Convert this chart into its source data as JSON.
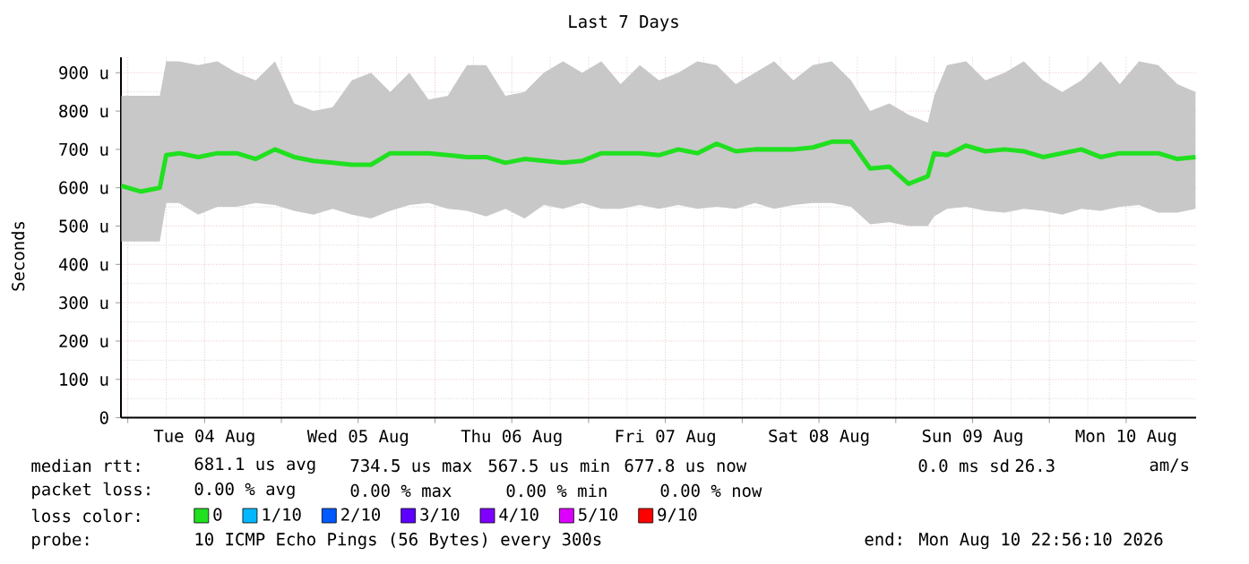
{
  "chart_data": {
    "type": "line",
    "title": "Last 7 Days",
    "ylabel": "Seconds",
    "legend_title": "loss color:",
    "legend": "bottom",
    "grid": true,
    "xlim": [
      "2026-08-03T22:56",
      "2026-08-10T22:56"
    ],
    "xticks": [
      {
        "value": "2026-08-04T00:00",
        "label": null
      },
      {
        "value": "2026-08-04T12:00",
        "label": "Tue 04 Aug"
      },
      {
        "value": "2026-08-05T00:00",
        "label": null
      },
      {
        "value": "2026-08-05T12:00",
        "label": "Wed 05 Aug"
      },
      {
        "value": "2026-08-06T00:00",
        "label": null
      },
      {
        "value": "2026-08-06T12:00",
        "label": "Thu 06 Aug"
      },
      {
        "value": "2026-08-07T00:00",
        "label": null
      },
      {
        "value": "2026-08-07T12:00",
        "label": "Fri 07 Aug"
      },
      {
        "value": "2026-08-08T00:00",
        "label": null
      },
      {
        "value": "2026-08-08T12:00",
        "label": "Sat 08 Aug"
      },
      {
        "value": "2026-08-09T00:00",
        "label": null
      },
      {
        "value": "2026-08-09T12:00",
        "label": "Sun 09 Aug"
      },
      {
        "value": "2026-08-10T00:00",
        "label": null
      },
      {
        "value": "2026-08-10T12:00",
        "label": "Mon 10 Aug"
      }
    ],
    "ylim": [
      0,
      940
    ],
    "yticks": [
      0,
      {
        "value": 100,
        "label": "100 u"
      },
      {
        "value": 200,
        "label": "200 u"
      },
      {
        "value": 300,
        "label": "300 u"
      },
      {
        "value": 400,
        "label": "400 u"
      },
      {
        "value": 500,
        "label": "500 u"
      },
      {
        "value": 600,
        "label": "600 u"
      },
      {
        "value": 700,
        "label": "700 u"
      },
      {
        "value": 800,
        "label": "800 u"
      },
      {
        "value": 900,
        "label": "900 u"
      }
    ],
    "x": [
      "2026-08-03T23:00",
      "2026-08-04T02:00",
      "2026-08-04T05:00",
      "2026-08-04T06:00",
      "2026-08-04T08:00",
      "2026-08-04T11:00",
      "2026-08-04T14:00",
      "2026-08-04T17:00",
      "2026-08-04T20:00",
      "2026-08-04T23:00",
      "2026-08-05T02:00",
      "2026-08-05T05:00",
      "2026-08-05T08:00",
      "2026-08-05T11:00",
      "2026-08-05T14:00",
      "2026-08-05T17:00",
      "2026-08-05T20:00",
      "2026-08-05T23:00",
      "2026-08-06T02:00",
      "2026-08-06T05:00",
      "2026-08-06T08:00",
      "2026-08-06T11:00",
      "2026-08-06T14:00",
      "2026-08-06T17:00",
      "2026-08-06T20:00",
      "2026-08-06T23:00",
      "2026-08-07T02:00",
      "2026-08-07T05:00",
      "2026-08-07T08:00",
      "2026-08-07T11:00",
      "2026-08-07T14:00",
      "2026-08-07T17:00",
      "2026-08-07T20:00",
      "2026-08-07T23:00",
      "2026-08-08T02:00",
      "2026-08-08T05:00",
      "2026-08-08T08:00",
      "2026-08-08T11:00",
      "2026-08-08T14:00",
      "2026-08-08T17:00",
      "2026-08-08T20:00",
      "2026-08-08T23:00",
      "2026-08-09T02:00",
      "2026-08-09T05:00",
      "2026-08-09T06:00",
      "2026-08-09T08:00",
      "2026-08-09T11:00",
      "2026-08-09T14:00",
      "2026-08-09T17:00",
      "2026-08-09T20:00",
      "2026-08-09T23:00",
      "2026-08-10T02:00",
      "2026-08-10T05:00",
      "2026-08-10T08:00",
      "2026-08-10T11:00",
      "2026-08-10T14:00",
      "2026-08-10T17:00",
      "2026-08-10T20:00",
      "2026-08-10T22:50"
    ],
    "series": [
      {
        "name": "0",
        "color": "#20e020",
        "values": [
          605,
          590,
          600,
          685,
          690,
          680,
          690,
          690,
          675,
          700,
          680,
          670,
          665,
          660,
          660,
          690,
          690,
          690,
          685,
          680,
          680,
          665,
          675,
          670,
          665,
          670,
          690,
          690,
          690,
          685,
          700,
          690,
          715,
          695,
          700,
          700,
          700,
          705,
          720,
          720,
          650,
          655,
          610,
          630,
          690,
          685,
          710,
          695,
          700,
          695,
          680,
          690,
          700,
          680,
          690,
          690,
          690,
          675,
          680
        ],
        "lower": [
          460,
          460,
          460,
          560,
          560,
          530,
          550,
          550,
          560,
          555,
          540,
          530,
          545,
          530,
          520,
          540,
          555,
          560,
          545,
          540,
          525,
          545,
          520,
          555,
          545,
          560,
          545,
          545,
          555,
          545,
          555,
          545,
          550,
          545,
          560,
          545,
          555,
          560,
          560,
          550,
          505,
          510,
          500,
          500,
          525,
          545,
          550,
          540,
          535,
          545,
          540,
          530,
          545,
          540,
          550,
          555,
          535,
          535,
          545
        ],
        "upper": [
          840,
          840,
          840,
          930,
          930,
          920,
          930,
          900,
          880,
          930,
          820,
          800,
          810,
          880,
          900,
          850,
          900,
          830,
          840,
          920,
          920,
          840,
          850,
          900,
          930,
          900,
          930,
          870,
          920,
          880,
          900,
          930,
          920,
          870,
          900,
          930,
          880,
          920,
          930,
          880,
          800,
          820,
          790,
          770,
          840,
          920,
          930,
          880,
          900,
          930,
          880,
          850,
          880,
          930,
          870,
          930,
          920,
          870,
          850
        ]
      },
      {
        "name": "1/10",
        "color": "#00b8ff",
        "values": [
          null,
          null,
          null,
          null,
          null,
          null,
          null,
          null,
          null,
          null,
          null,
          null,
          null,
          null,
          null,
          null,
          null,
          null,
          null,
          null,
          null,
          null,
          null,
          null,
          null,
          null,
          null,
          null,
          null,
          null,
          null,
          null,
          null,
          null,
          null,
          null,
          null,
          null,
          null,
          null,
          null,
          null,
          null,
          null,
          null,
          null,
          null,
          null,
          null,
          null,
          null,
          null,
          null,
          null,
          null,
          null,
          null,
          null,
          null
        ]
      },
      {
        "name": "2/10",
        "color": "#0059ff",
        "values": [
          null,
          null,
          null,
          null,
          null,
          null,
          null,
          null,
          null,
          null,
          null,
          null,
          null,
          null,
          null,
          null,
          null,
          null,
          null,
          null,
          null,
          null,
          null,
          null,
          null,
          null,
          null,
          null,
          null,
          null,
          null,
          null,
          null,
          null,
          null,
          null,
          null,
          null,
          null,
          null,
          null,
          null,
          null,
          null,
          null,
          null,
          null,
          null,
          null,
          null,
          null,
          null,
          null,
          null,
          null,
          null,
          null,
          null,
          null
        ]
      },
      {
        "name": "3/10",
        "color": "#5e00ff",
        "values": [
          null,
          null,
          null,
          null,
          null,
          null,
          null,
          null,
          null,
          null,
          null,
          null,
          null,
          null,
          null,
          null,
          null,
          null,
          null,
          null,
          null,
          null,
          null,
          null,
          null,
          null,
          null,
          null,
          null,
          null,
          null,
          null,
          null,
          null,
          null,
          null,
          null,
          null,
          null,
          null,
          null,
          null,
          null,
          null,
          null,
          null,
          null,
          null,
          null,
          null,
          null,
          null,
          null,
          null,
          null,
          null,
          null,
          null,
          null
        ]
      },
      {
        "name": "4/10",
        "color": "#7e00ff",
        "values": [
          null,
          null,
          null,
          null,
          null,
          null,
          null,
          null,
          null,
          null,
          null,
          null,
          null,
          null,
          null,
          null,
          null,
          null,
          null,
          null,
          null,
          null,
          null,
          null,
          null,
          null,
          null,
          null,
          null,
          null,
          null,
          null,
          null,
          null,
          null,
          null,
          null,
          null,
          null,
          null,
          null,
          null,
          null,
          null,
          null,
          null,
          null,
          null,
          null,
          null,
          null,
          null,
          null,
          null,
          null,
          null,
          null,
          null,
          null
        ]
      },
      {
        "name": "5/10",
        "color": "#dd00ff",
        "values": [
          null,
          null,
          null,
          null,
          null,
          null,
          null,
          null,
          null,
          null,
          null,
          null,
          null,
          null,
          null,
          null,
          null,
          null,
          null,
          null,
          null,
          null,
          null,
          null,
          null,
          null,
          null,
          null,
          null,
          null,
          null,
          null,
          null,
          null,
          null,
          null,
          null,
          null,
          null,
          null,
          null,
          null,
          null,
          null,
          null,
          null,
          null,
          null,
          null,
          null,
          null,
          null,
          null,
          null,
          null,
          null,
          null,
          null,
          null
        ]
      },
      {
        "name": "9/10",
        "color": "#ff0000",
        "values": [
          null,
          null,
          null,
          null,
          null,
          null,
          null,
          null,
          null,
          null,
          null,
          null,
          null,
          null,
          null,
          null,
          null,
          null,
          null,
          null,
          null,
          null,
          null,
          null,
          null,
          null,
          null,
          null,
          null,
          null,
          null,
          null,
          null,
          null,
          null,
          null,
          null,
          null,
          null,
          null,
          null,
          null,
          null,
          null,
          null,
          null,
          null,
          null,
          null,
          null,
          null,
          null,
          null,
          null,
          null,
          null,
          null,
          null,
          null
        ]
      }
    ],
    "annotations": [
      "median rtt:",
      "681.1 us avg",
      "734.5 us max",
      "567.5 us min",
      "677.8 us now",
      "0.0 ms sd",
      "26.3",
      "am/s",
      "packet loss:",
      "0.00 % avg",
      "0.00 % max",
      "0.00 % min",
      "0.00 % now",
      "probe:",
      "10 ICMP Echo Pings (56 Bytes) every 300s",
      "end: Mon Aug 10 22:56:10 2026"
    ]
  }
}
